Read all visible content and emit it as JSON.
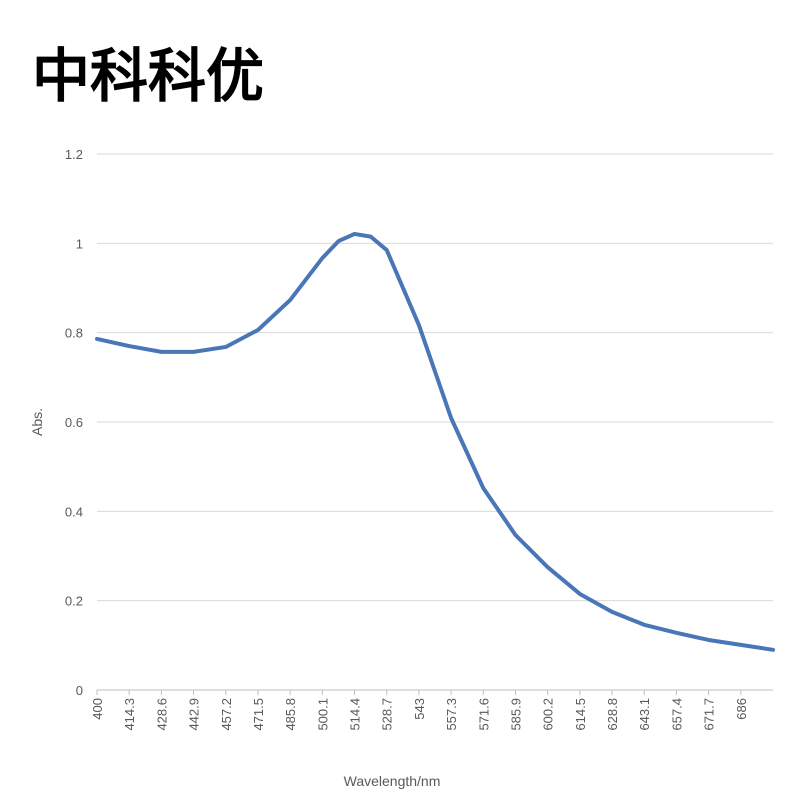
{
  "chart_data": {
    "type": "line",
    "title": "中科科优",
    "x_label": "Wavelength/nm",
    "y_label": "Abs.",
    "x": [
      400,
      414.3,
      428.6,
      442.9,
      457.2,
      471.5,
      485.8,
      500.1,
      507.3,
      514.4,
      521.6,
      528.7,
      543,
      557.3,
      571.6,
      585.9,
      600.2,
      614.5,
      628.8,
      643.1,
      657.4,
      671.7,
      686,
      700.3
    ],
    "series": [
      {
        "name": "Abs.",
        "color": "#4a76b8",
        "values": [
          0.786,
          0.77,
          0.757,
          0.757,
          0.768,
          0.806,
          0.873,
          0.967,
          1.005,
          1.021,
          1.015,
          0.985,
          0.817,
          0.609,
          0.452,
          0.347,
          0.275,
          0.215,
          0.175,
          0.146,
          0.128,
          0.112,
          0.101,
          0.09
        ]
      }
    ],
    "xlim": [
      400,
      700.3
    ],
    "xticks": [
      400,
      414.3,
      428.6,
      442.9,
      457.2,
      471.5,
      485.8,
      500.1,
      514.4,
      528.7,
      543,
      557.3,
      571.6,
      585.9,
      600.2,
      614.5,
      628.8,
      643.1,
      657.4,
      671.7,
      686
    ],
    "ylim": [
      0,
      1.2
    ],
    "yticks": [
      0,
      0.2,
      0.4,
      0.6,
      0.8,
      1,
      1.2
    ],
    "grid": true
  }
}
